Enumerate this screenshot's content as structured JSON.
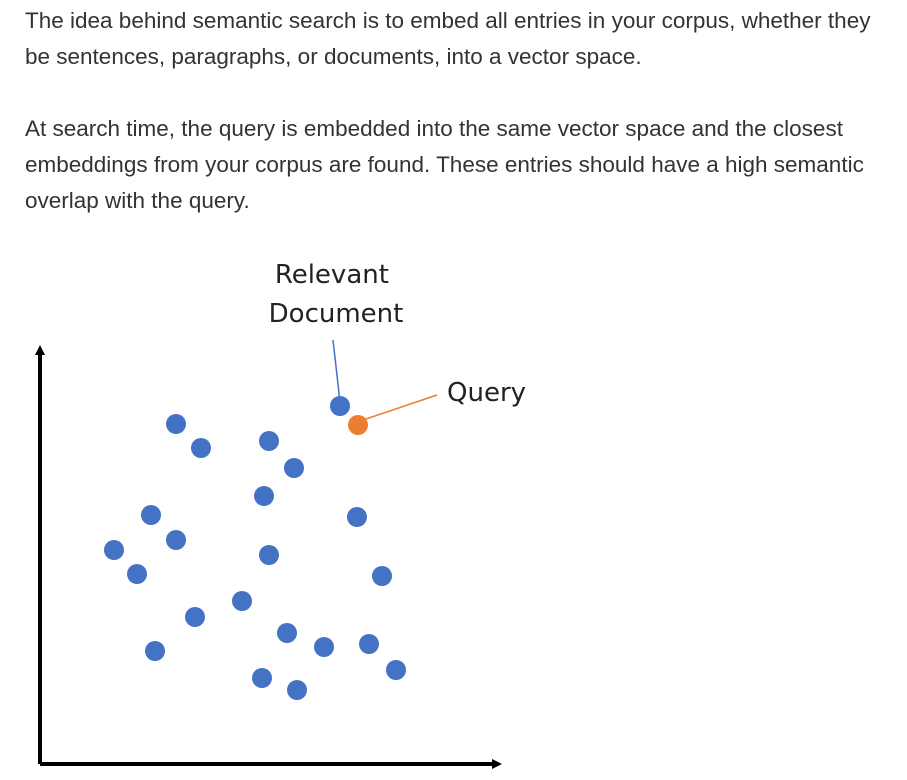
{
  "paragraphs": [
    "The idea behind semantic search is to embed all entries in your corpus, whether they be sentences, paragraphs, or documents, into a vector space.",
    "At search time, the query is embedded into the same vector space and the closest embeddings from your corpus are found. These entries should have a high semantic overlap with the query."
  ],
  "figure": {
    "relevant_label_line1": "Relevant",
    "relevant_label_line2": "Document",
    "query_label": "Query",
    "colors": {
      "document_point": "#4472C4",
      "query_point": "#ED7D31",
      "relevant_connector": "#4472C4",
      "query_connector": "#ED7D31",
      "axes": "#000000"
    }
  }
}
